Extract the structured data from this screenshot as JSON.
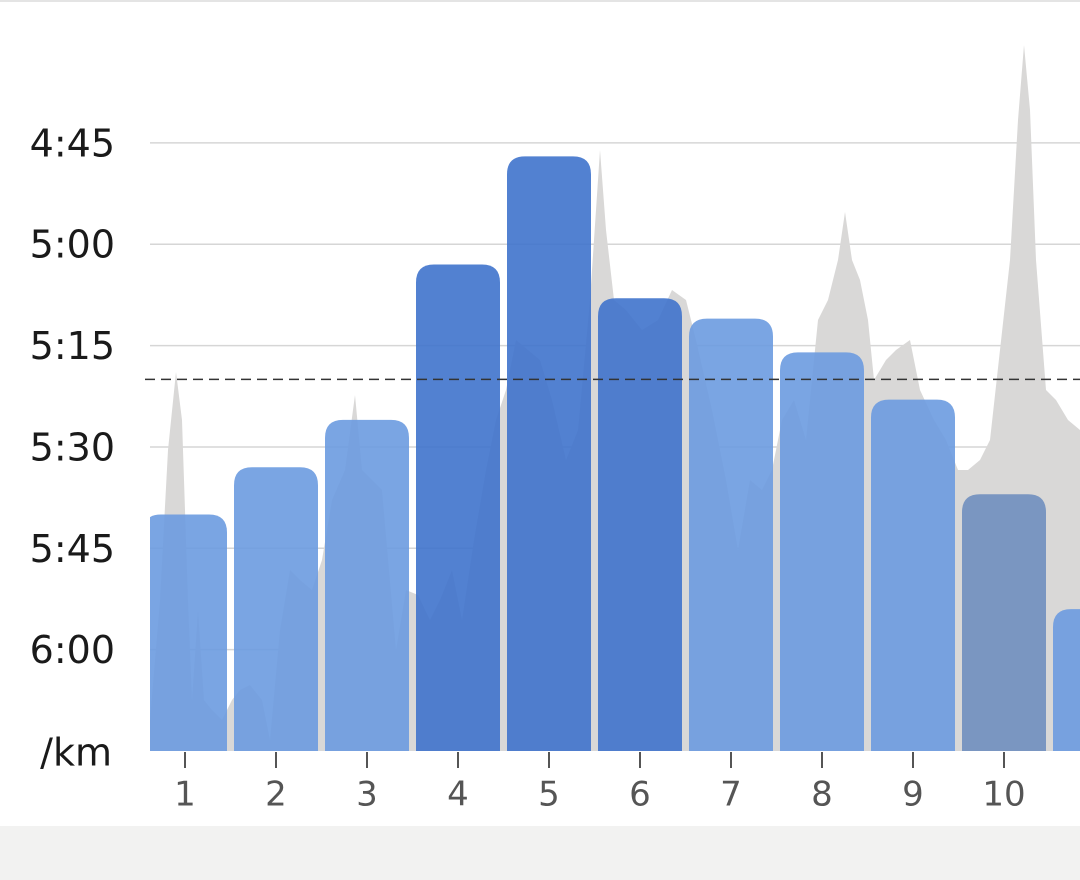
{
  "chart_data": {
    "type": "bar",
    "y_label": "/km",
    "categories": [
      "1",
      "2",
      "3",
      "4",
      "5",
      "6",
      "7",
      "8",
      "9",
      "10",
      null
    ],
    "values": [
      340,
      333,
      326,
      303,
      287,
      308,
      311,
      316,
      323,
      337,
      354
    ],
    "colors": [
      "#6b9be0",
      "#6b9be0",
      "#6b9be0",
      "#3f73cc",
      "#3f73cc",
      "#3f73cc",
      "#6b9be0",
      "#6b9be0",
      "#6b9be0",
      "#6f8fbf",
      "#6b9be0"
    ],
    "average": 320,
    "ylim": [
      375,
      264
    ],
    "yticks": [
      {
        "value": 285,
        "label": "4:45"
      },
      {
        "value": 300,
        "label": "5:00"
      },
      {
        "value": 315,
        "label": "5:15"
      },
      {
        "value": 330,
        "label": "5:30"
      },
      {
        "value": 345,
        "label": "5:45"
      },
      {
        "value": 360,
        "label": "6:00"
      }
    ],
    "grid": true
  }
}
